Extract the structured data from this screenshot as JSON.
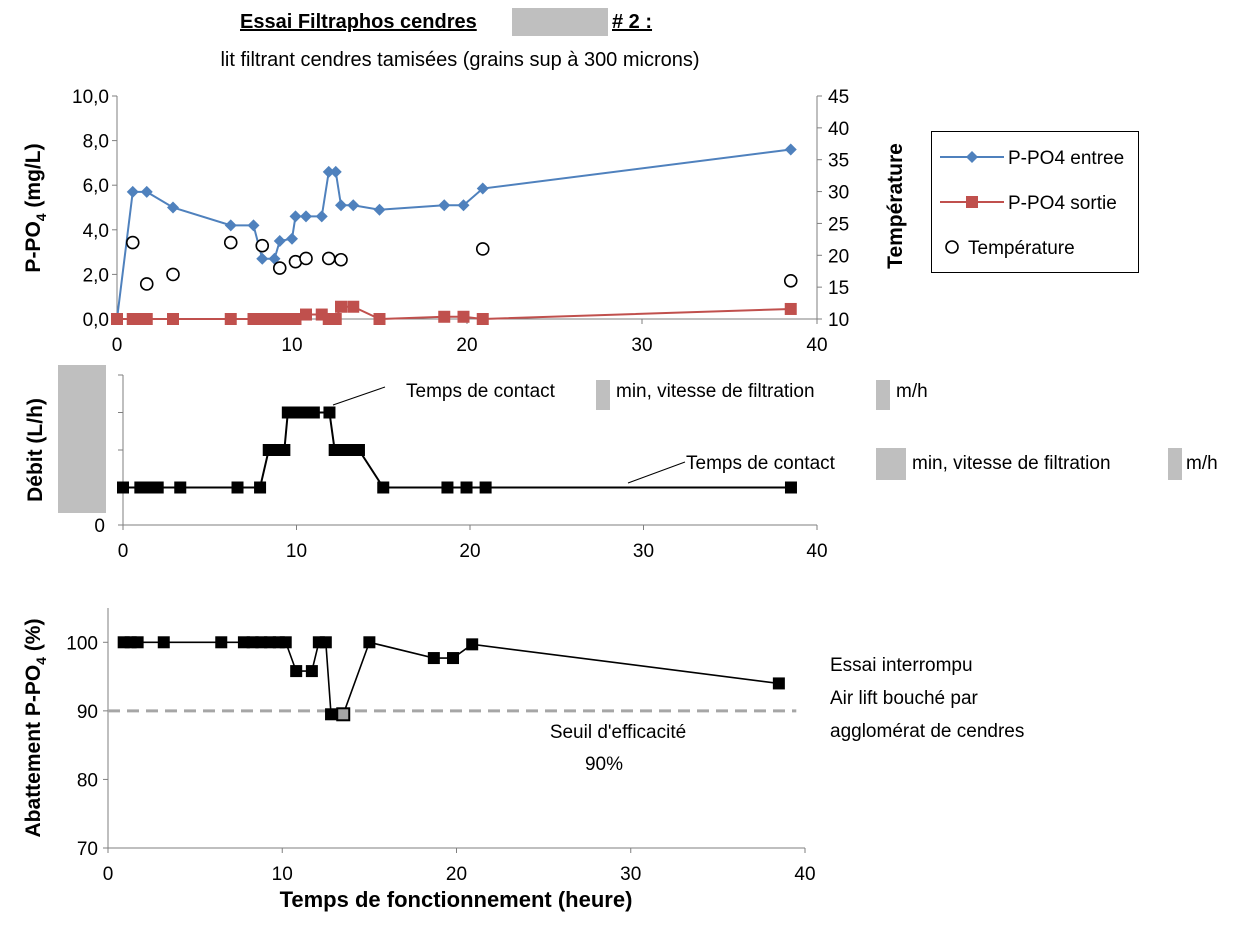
{
  "title": {
    "main_part1": "Essai Filtraphos cendres",
    "main_part2": "# 2 :",
    "subtitle": "lit filtrant cendres tamisées (grains sup à 300 microns)"
  },
  "colors": {
    "entree": "#4F81BD",
    "sortie": "#C0504D",
    "black": "#000000",
    "redaction": "#BFBFBF",
    "threshold": "#A6A6A6"
  },
  "chart_data": [
    {
      "type": "line",
      "name": "concentrations",
      "x_range": [
        0,
        40
      ],
      "x_ticks": [
        "0",
        "10",
        "20",
        "30",
        "40"
      ],
      "ylim": [
        0,
        10
      ],
      "y_ticks": [
        "0,0",
        "2,0",
        "4,0",
        "6,0",
        "8,0",
        "10,0"
      ],
      "ylabel": "P-PO",
      "ylabel_sub": "4",
      "ylabel_unit": " (mg/L)",
      "y2lim": [
        10,
        45
      ],
      "y2_ticks": [
        "10",
        "15",
        "20",
        "25",
        "30",
        "35",
        "40",
        "45"
      ],
      "y2label": "Température",
      "series": [
        {
          "name": "P-PO4 entree",
          "marker": "diamond",
          "x": [
            0,
            0.9,
            1.7,
            3.2,
            6.5,
            7.8,
            8.3,
            9.0,
            9.3,
            10.0,
            10.2,
            10.8,
            11.7,
            12.1,
            12.5,
            12.8,
            13.5,
            15.0,
            18.7,
            19.8,
            20.9,
            38.5
          ],
          "y": [
            0,
            5.7,
            5.7,
            5.0,
            4.2,
            4.2,
            2.7,
            2.7,
            3.5,
            3.6,
            4.6,
            4.6,
            4.6,
            6.6,
            6.6,
            5.1,
            5.1,
            4.9,
            5.1,
            5.1,
            5.85,
            7.6
          ]
        },
        {
          "name": "P-PO4 sortie",
          "marker": "square",
          "x": [
            0,
            0.9,
            1.3,
            1.7,
            3.2,
            6.5,
            7.8,
            8.3,
            8.8,
            9.3,
            9.8,
            10.2,
            10.8,
            11.7,
            12.1,
            12.5,
            12.8,
            13.5,
            15.0,
            18.7,
            19.8,
            20.9,
            38.5
          ],
          "y": [
            0,
            0,
            0,
            0,
            0,
            0,
            0,
            0,
            0,
            0,
            0,
            0,
            0.2,
            0.2,
            0,
            0,
            0.55,
            0.55,
            0,
            0.1,
            0.1,
            0,
            0.45
          ]
        },
        {
          "name": "Température",
          "marker": "circle",
          "axis": "secondary",
          "x": [
            0.9,
            1.7,
            3.2,
            6.5,
            8.3,
            9.3,
            10.2,
            10.8,
            12.1,
            12.8,
            20.9,
            38.5
          ],
          "y": [
            22,
            15.5,
            17,
            22,
            21.5,
            18,
            19,
            19.5,
            19.5,
            19.3,
            21,
            16
          ]
        }
      ]
    },
    {
      "type": "line",
      "name": "debit",
      "x_range": [
        0,
        40
      ],
      "x_ticks": [
        "0",
        "10",
        "20",
        "30",
        "40"
      ],
      "y_levels": 4,
      "y_ticks": [
        "0"
      ],
      "ylabel": "Débit (L/h)",
      "series": [
        {
          "name": "Débit",
          "marker": "square",
          "x": [
            0,
            1.0,
            1.5,
            2.0,
            3.3,
            6.6,
            7.9,
            8.4,
            8.8,
            9.3,
            9.5,
            10.0,
            10.5,
            11.0,
            11.9,
            12.2,
            12.7,
            13.1,
            13.6,
            15.0,
            18.7,
            19.8,
            20.9,
            38.5
          ],
          "y": [
            1,
            1,
            1,
            1,
            1,
            1,
            1,
            2,
            2,
            2,
            3,
            3,
            3,
            3,
            3,
            2,
            2,
            2,
            2,
            1,
            1,
            1,
            1,
            1
          ]
        }
      ],
      "annotations": [
        {
          "text_a": "Temps de contact",
          "text_b": "min, vitesse de filtration",
          "text_c": "m/h"
        },
        {
          "text_a": "Temps de contact",
          "text_b": "min, vitesse de filtration",
          "text_c": "m/h"
        }
      ]
    },
    {
      "type": "line",
      "name": "abattement",
      "x_range": [
        0,
        40
      ],
      "x_ticks": [
        "0",
        "10",
        "20",
        "30",
        "40"
      ],
      "ylim": [
        70,
        105
      ],
      "y_ticks": [
        "70",
        "80",
        "90",
        "100"
      ],
      "ylabel": "Abattement P-PO",
      "ylabel_sub": "4",
      "ylabel_unit": " (%)",
      "xlabel": "Temps de fonctionnement (heure)",
      "threshold": 90,
      "threshold_label_1": "Seuil d'efficacité",
      "threshold_label_2": "90%",
      "series": [
        {
          "name": "Abattement",
          "marker": "square",
          "x": [
            0.9,
            1.3,
            1.7,
            3.2,
            6.5,
            7.8,
            8.3,
            8.8,
            9.3,
            9.8,
            10.2,
            10.8,
            11.7,
            12.1,
            12.5,
            12.8,
            13.5,
            15.0,
            18.7,
            19.8,
            20.9,
            38.5
          ],
          "y": [
            100,
            100,
            100,
            100,
            100,
            100,
            100,
            100,
            100,
            100,
            100,
            95.8,
            95.8,
            100,
            100,
            89.5,
            89.5,
            100,
            97.7,
            97.7,
            99.7,
            94
          ],
          "highlight_index": 16
        }
      ],
      "note_lines": [
        "Essai interrompu",
        "Air lift bouché par",
        "agglomérat de cendres"
      ]
    }
  ]
}
